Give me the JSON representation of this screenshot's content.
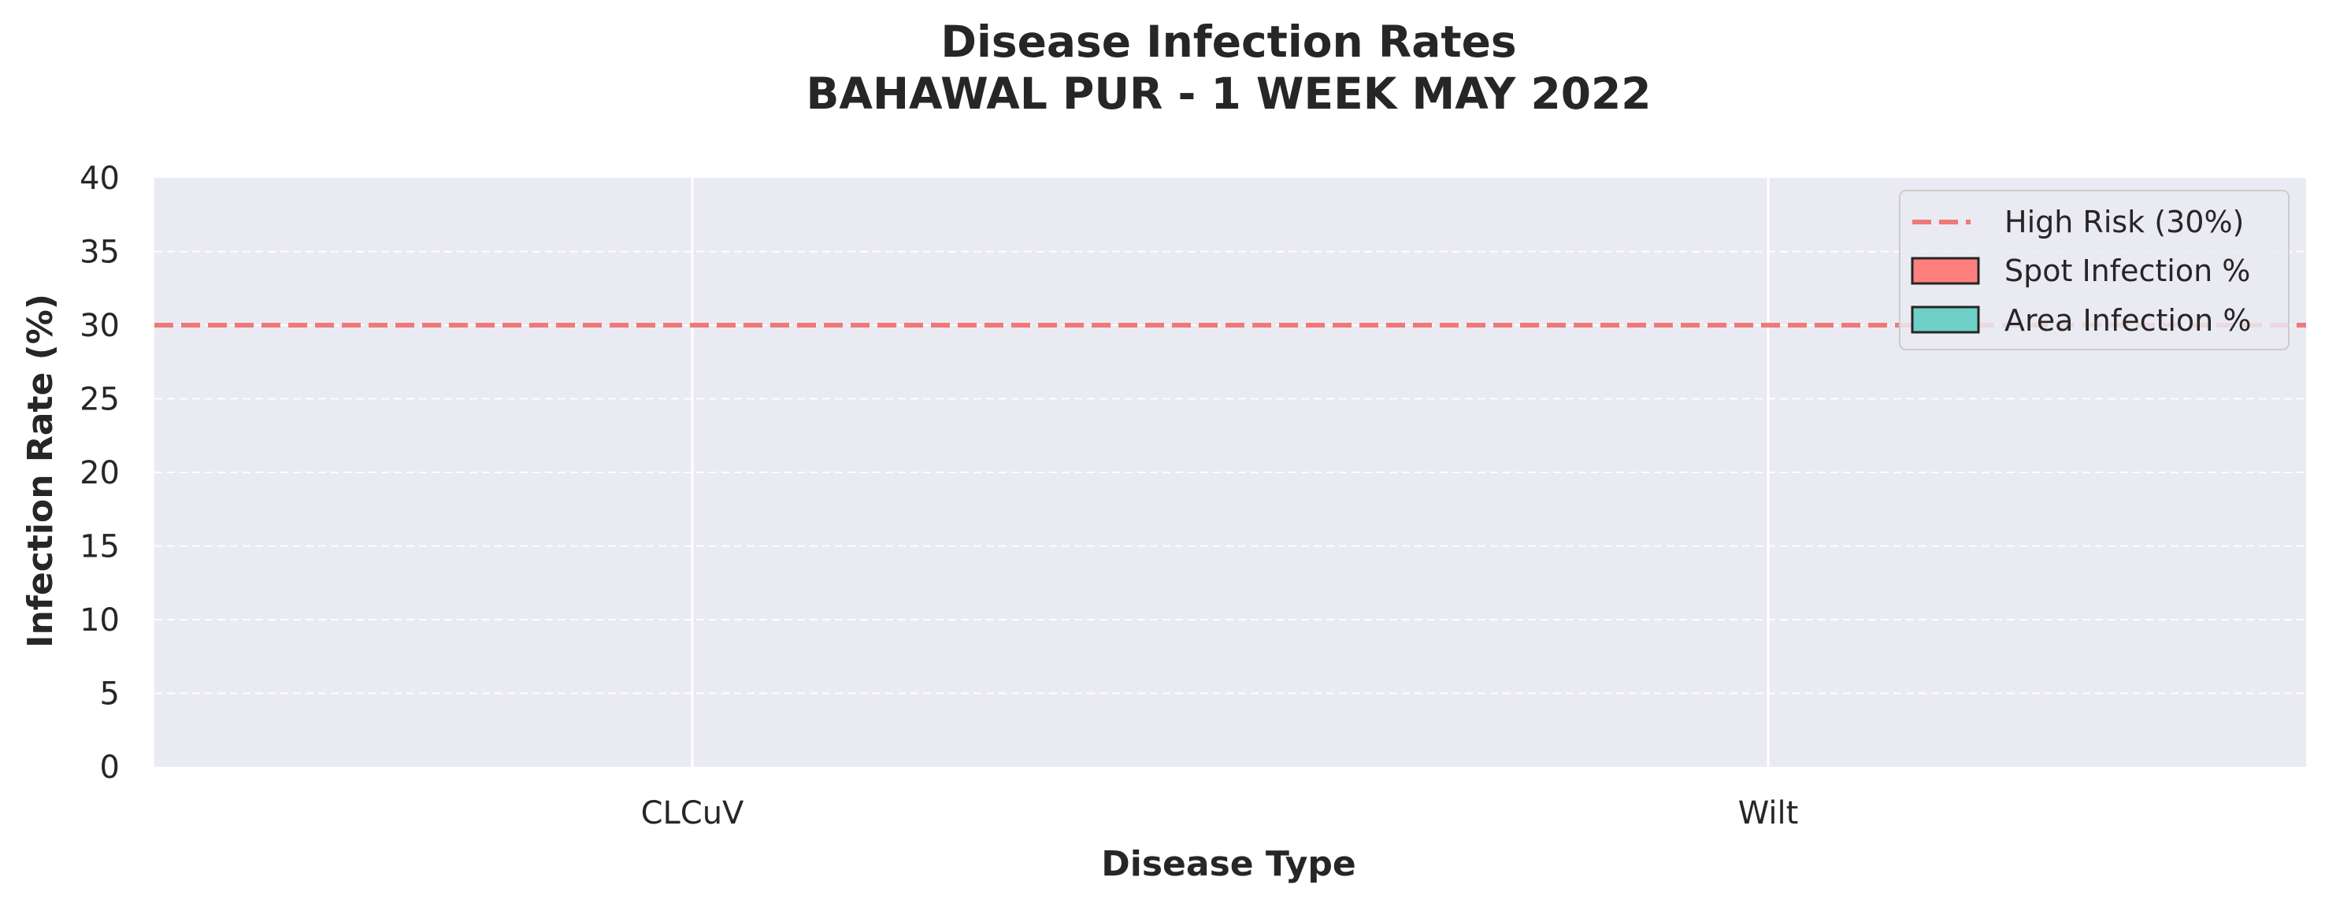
{
  "chart_data": {
    "type": "bar",
    "title": "Disease Infection Rates",
    "subtitle": "BAHAWAL PUR - 1 WEEK MAY 2022",
    "xlabel": "Disease Type",
    "ylabel": "Infection Rate (%)",
    "categories": [
      "CLCuV",
      "Wilt"
    ],
    "series": [
      {
        "name": "Spot Infection %",
        "values": [
          0,
          0
        ],
        "color": "#ff7f7f"
      },
      {
        "name": "Area Infection %",
        "values": [
          0,
          0
        ],
        "color": "#6fd0c8"
      }
    ],
    "reference_line": {
      "name": "High Risk (30%)",
      "value": 30,
      "color": "#f07878",
      "style": "dashed"
    },
    "ylim": [
      0,
      40
    ],
    "yticks": [
      0,
      5,
      10,
      15,
      20,
      25,
      30,
      35,
      40
    ],
    "grid": true,
    "legend_position": "top-right",
    "plot_background": "#eaeaf2"
  }
}
